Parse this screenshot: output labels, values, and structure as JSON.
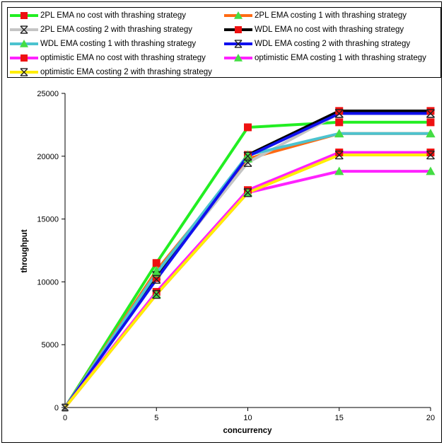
{
  "chart_data": {
    "type": "line",
    "title": "",
    "xlabel": "concurrency",
    "ylabel": "throughput",
    "x": [
      0,
      5,
      10,
      15,
      20
    ],
    "xlim": [
      0,
      20
    ],
    "ylim": [
      0,
      25000
    ],
    "x_ticks": [
      "0",
      "5",
      "10",
      "15",
      "20"
    ],
    "y_ticks": [
      "0",
      "5000",
      "10000",
      "15000",
      "20000",
      "25000"
    ],
    "grid": false,
    "legend_position": "top",
    "series": [
      {
        "name": "2PL EMA no cost with thrashing strategy",
        "color": "#22ee22",
        "marker": "square",
        "marker_color": "#ee1111",
        "values": [
          0,
          11500,
          22300,
          22700,
          22700
        ]
      },
      {
        "name": "2PL EMA costing 1 with thrashing strategy",
        "color": "#ff6a13",
        "marker": "triangle",
        "marker_color": "#44dd44",
        "values": [
          0,
          10900,
          19800,
          21800,
          21800
        ]
      },
      {
        "name": "2PL EMA costing 2 with thrashing strategy",
        "color": "#c4c4c4",
        "marker": "star",
        "marker_color": "#222222",
        "values": [
          0,
          10500,
          19500,
          23400,
          23400
        ]
      },
      {
        "name": "WDL EMA no cost with thrashing strategy",
        "color": "#000000",
        "marker": "square",
        "marker_color": "#ee1111",
        "values": [
          0,
          10300,
          20100,
          23600,
          23600
        ]
      },
      {
        "name": "WDL EMA costing 1 with thrashing strategy",
        "color": "#4cc3cf",
        "marker": "triangle",
        "marker_color": "#44dd44",
        "values": [
          0,
          10700,
          20100,
          21800,
          21800
        ]
      },
      {
        "name": "WDL EMA costing 2 with thrashing strategy",
        "color": "#1010ee",
        "marker": "star",
        "marker_color": "#222222",
        "values": [
          0,
          10200,
          20000,
          23400,
          23400
        ]
      },
      {
        "name": "optimistic EMA no cost with thrashing strategy",
        "color": "#ff22ff",
        "marker": "square",
        "marker_color": "#ee1111",
        "values": [
          0,
          9200,
          17300,
          20300,
          20300
        ]
      },
      {
        "name": "optimistic EMA costing 1 with thrashing strategy",
        "color": "#ff22ff",
        "marker": "triangle",
        "marker_color": "#44dd44",
        "values": [
          0,
          9000,
          17100,
          18800,
          18800
        ]
      },
      {
        "name": "optimistic EMA costing 2 with thrashing strategy",
        "color": "#ffee00",
        "marker": "star",
        "marker_color": "#222222",
        "values": [
          0,
          9000,
          17100,
          20100,
          20100
        ]
      }
    ]
  }
}
